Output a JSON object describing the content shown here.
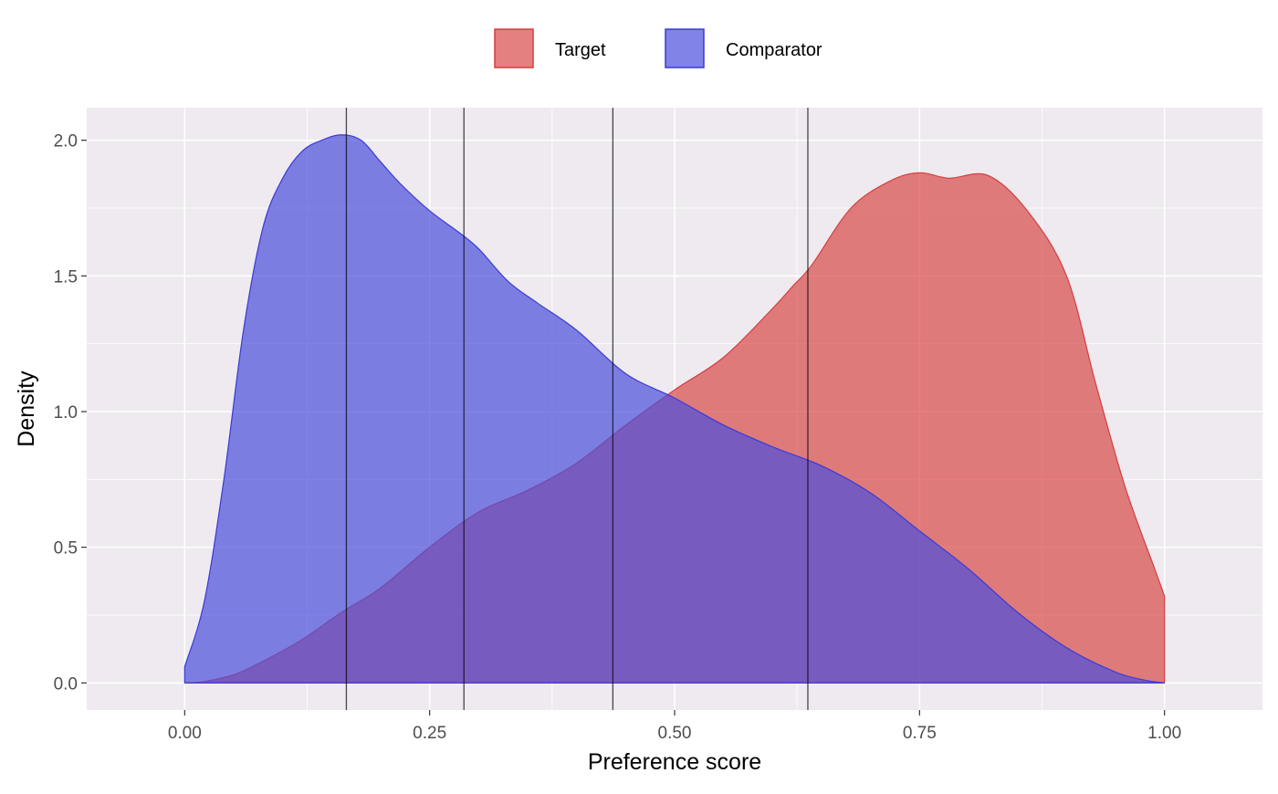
{
  "chart_data": {
    "type": "area",
    "title": "",
    "xlabel": "Preference score",
    "ylabel": "Density",
    "xlim": [
      -0.1,
      1.1
    ],
    "ylim": [
      -0.1,
      2.12
    ],
    "x_ticks": [
      0.0,
      0.25,
      0.5,
      0.75,
      1.0
    ],
    "x_tick_labels": [
      "0.00",
      "0.25",
      "0.50",
      "0.75",
      "1.00"
    ],
    "y_ticks": [
      0.0,
      0.5,
      1.0,
      1.5,
      2.0
    ],
    "y_tick_labels": [
      "0.0",
      "0.5",
      "1.0",
      "1.5",
      "2.0"
    ],
    "grid": true,
    "legend_position": "top",
    "vertical_lines": [
      0.165,
      0.285,
      0.437,
      0.636
    ],
    "series": [
      {
        "name": "Target",
        "fill": "#d94a4a",
        "stroke": "#d43f3f",
        "x": [
          0.0,
          0.02,
          0.05,
          0.08,
          0.12,
          0.16,
          0.2,
          0.25,
          0.3,
          0.35,
          0.4,
          0.45,
          0.5,
          0.55,
          0.6,
          0.62,
          0.64,
          0.68,
          0.72,
          0.75,
          0.78,
          0.82,
          0.86,
          0.9,
          0.93,
          0.96,
          0.99,
          1.0
        ],
        "y": [
          0.0,
          0.005,
          0.03,
          0.08,
          0.16,
          0.26,
          0.35,
          0.5,
          0.63,
          0.71,
          0.81,
          0.95,
          1.08,
          1.2,
          1.38,
          1.46,
          1.54,
          1.75,
          1.85,
          1.88,
          1.86,
          1.87,
          1.74,
          1.5,
          1.1,
          0.72,
          0.42,
          0.32
        ]
      },
      {
        "name": "Comparator",
        "fill": "#4c4fdc",
        "stroke": "#3a3ad6",
        "x": [
          0.0,
          0.02,
          0.04,
          0.06,
          0.08,
          0.1,
          0.12,
          0.14,
          0.16,
          0.18,
          0.2,
          0.22,
          0.25,
          0.28,
          0.3,
          0.33,
          0.36,
          0.4,
          0.45,
          0.5,
          0.55,
          0.6,
          0.65,
          0.7,
          0.75,
          0.8,
          0.85,
          0.9,
          0.95,
          0.98,
          1.0
        ],
        "y": [
          0.06,
          0.3,
          0.75,
          1.3,
          1.68,
          1.86,
          1.96,
          2.0,
          2.02,
          2.0,
          1.92,
          1.84,
          1.74,
          1.66,
          1.6,
          1.48,
          1.4,
          1.3,
          1.14,
          1.05,
          0.95,
          0.87,
          0.8,
          0.7,
          0.56,
          0.42,
          0.26,
          0.13,
          0.04,
          0.01,
          0.0
        ]
      }
    ]
  }
}
